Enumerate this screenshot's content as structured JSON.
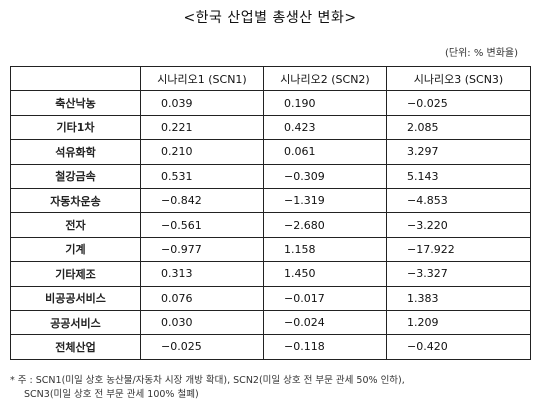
{
  "title": "<한국 산업별 총생산 변화>",
  "unit": "(단위: % 변화율)",
  "table": {
    "headers": [
      "",
      "시나리오1 (SCN1)",
      "시나리오2 (SCN2)",
      "시나리오3 (SCN3)"
    ],
    "rows": [
      {
        "label": "축산낙농",
        "v": [
          "0.039",
          "0.190",
          "−0.025"
        ]
      },
      {
        "label": "기타1차",
        "v": [
          "0.221",
          "0.423",
          "2.085"
        ]
      },
      {
        "label": "석유화학",
        "v": [
          "0.210",
          "0.061",
          "3.297"
        ]
      },
      {
        "label": "철강금속",
        "v": [
          "0.531",
          "−0.309",
          "5.143"
        ]
      },
      {
        "label": "자동차운송",
        "v": [
          "−0.842",
          "−1.319",
          "−4.853"
        ]
      },
      {
        "label": "전자",
        "v": [
          "−0.561",
          "−2.680",
          "−3.220"
        ]
      },
      {
        "label": "기계",
        "v": [
          "−0.977",
          "1.158",
          "−17.922"
        ]
      },
      {
        "label": "기타제조",
        "v": [
          "0.313",
          "1.450",
          "−3.327"
        ]
      },
      {
        "label": "비공공서비스",
        "v": [
          "0.076",
          "−0.017",
          "1.383"
        ]
      },
      {
        "label": "공공서비스",
        "v": [
          "0.030",
          "−0.024",
          "1.209"
        ]
      },
      {
        "label": "전체산업",
        "v": [
          "−0.025",
          "−0.118",
          "−0.420"
        ]
      }
    ]
  },
  "note": {
    "line1": "* 주 : SCN1(미일 상호 농산물/자동차 시장 개방 확대), SCN2(미일 상호 전 부문 관세 50% 인하),",
    "line2": "SCN3(미일 상호 전 부문 관세 100% 철폐)"
  }
}
